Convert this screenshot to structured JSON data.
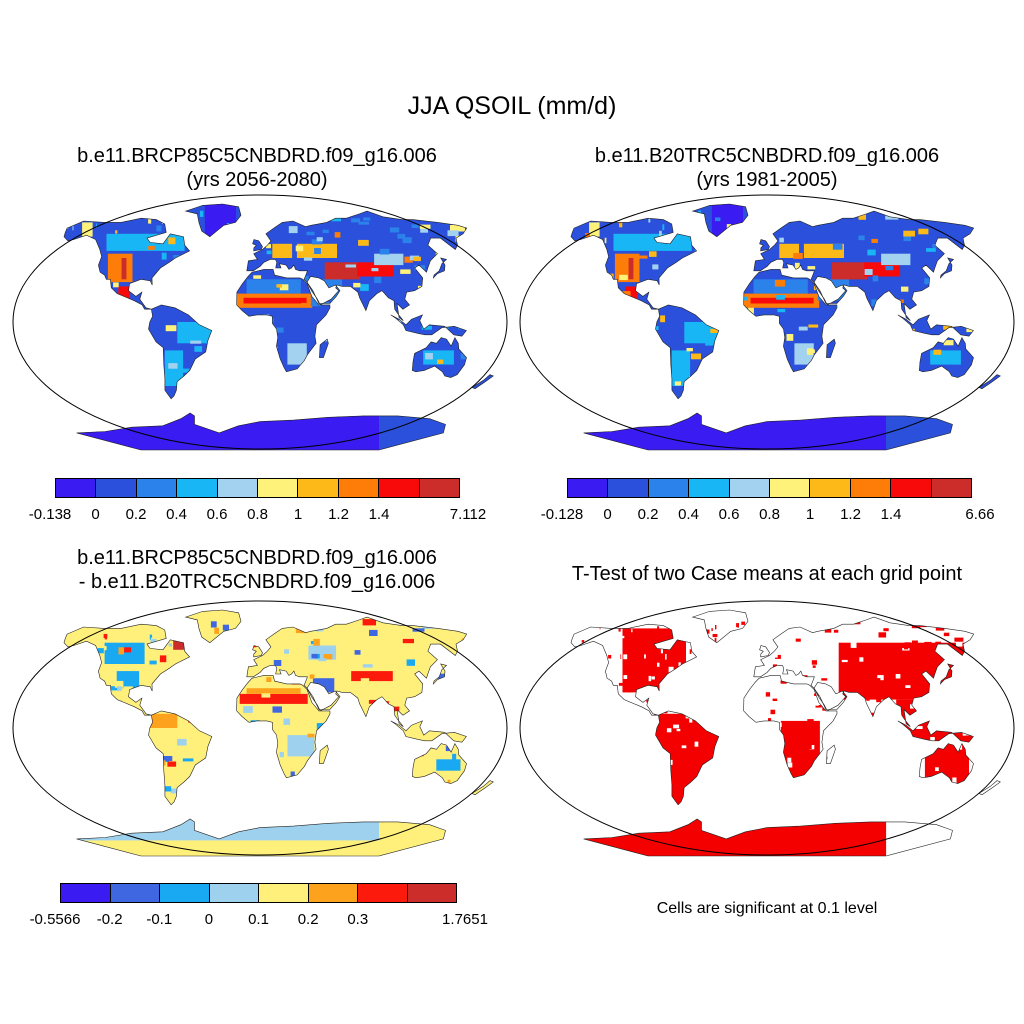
{
  "figure": {
    "title": "JJA QSOIL (mm/d)",
    "panels": [
      {
        "title_line1": "b.e11.BRCP85C5CNBDRD.f09_g16.006",
        "title_line2": "(yrs 2056-2080)",
        "colorbar": {
          "colors": [
            "#3a1cf2",
            "#2a50dc",
            "#2b82ea",
            "#19b6f5",
            "#a2d2f0",
            "#fff27a",
            "#fcb918",
            "#fe7c08",
            "#f90a0a",
            "#cc2c2a"
          ],
          "labels": [
            "-0.138",
            "0",
            "0.2",
            "0.4",
            "0.6",
            "0.8",
            "1",
            "1.2",
            "1.4",
            "7.112"
          ]
        }
      },
      {
        "title_line1": "b.e11.B20TRC5CNBDRD.f09_g16.006",
        "title_line2": "(yrs 1981-2005)",
        "colorbar": {
          "colors": [
            "#3a1cf2",
            "#2a50dc",
            "#2b82ea",
            "#19b6f5",
            "#a2d2f0",
            "#fff27a",
            "#fcb918",
            "#fe7c08",
            "#f90a0a",
            "#cc2c2a"
          ],
          "labels": [
            "-0.128",
            "0",
            "0.2",
            "0.4",
            "0.6",
            "0.8",
            "1",
            "1.2",
            "1.4",
            "6.66"
          ]
        }
      },
      {
        "title_line1": "b.e11.BRCP85C5CNBDRD.f09_g16.006",
        "title_line2": "- b.e11.B20TRC5CNBDRD.f09_g16.006",
        "colorbar": {
          "colors": [
            "#3a1cf2",
            "#3f67e2",
            "#19a8f2",
            "#9ed1ee",
            "#fff07c",
            "#fca21c",
            "#fb1a0c",
            "#cc2c2a"
          ],
          "labels": [
            "-0.5566",
            "-0.2",
            "-0.1",
            "0",
            "0.1",
            "0.2",
            "0.3",
            "1.7651"
          ]
        }
      },
      {
        "title_line1": "T-Test of two Case means at each grid point",
        "note": "Cells are significant at 0.1 level",
        "fill_color": "#f40000"
      }
    ]
  }
}
